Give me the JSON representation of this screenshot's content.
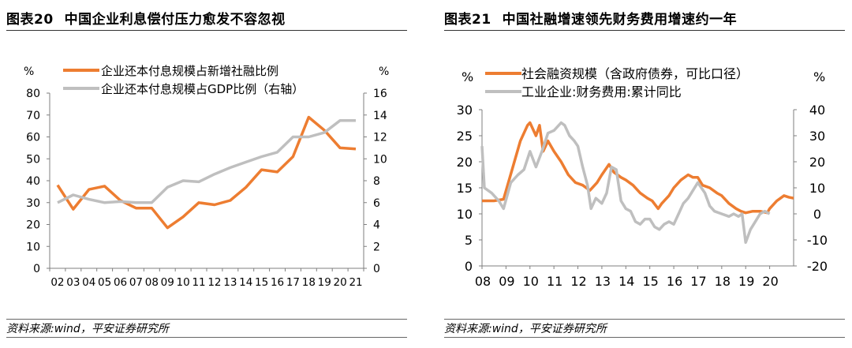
{
  "left": {
    "fig_num": "图表20",
    "title": "中国企业利息偿付压力愈发不容忽视",
    "source": "资料来源:wind，平安证券研究所"
  },
  "right": {
    "fig_num": "图表21",
    "title": "中国社融增速领先财务费用增速约一年",
    "source": "资料来源:wind，平安证券研究所"
  },
  "colors": {
    "orange": "#ED7D31",
    "gray": "#BFBFBF"
  },
  "chart_data": [
    {
      "type": "line",
      "title": "中国企业利息偿付压力愈发不容忽视",
      "x": [
        "02",
        "03",
        "04",
        "05",
        "06",
        "07",
        "08",
        "09",
        "10",
        "11",
        "12",
        "13",
        "14",
        "15",
        "16",
        "17",
        "18",
        "19",
        "20",
        "21"
      ],
      "y_unit_left": "%",
      "y_unit_right": "%",
      "ylim_left": [
        0,
        80
      ],
      "yticks_left": [
        "0",
        "10",
        "20",
        "30",
        "40",
        "50",
        "60",
        "70",
        "80"
      ],
      "ylim_right": [
        0,
        16
      ],
      "yticks_right": [
        "0",
        "2",
        "4",
        "6",
        "8",
        "10",
        "12",
        "14",
        "16"
      ],
      "legend_position": "top-left",
      "series": [
        {
          "name": "企业还本付息规模占新增社融比例",
          "axis": "left",
          "color": "#ED7D31",
          "values": [
            38,
            27,
            36,
            37.5,
            31,
            27.5,
            27.5,
            18.5,
            23.5,
            30,
            29,
            31,
            37,
            45,
            44,
            51,
            69,
            63,
            55,
            54.5
          ]
        },
        {
          "name": "企业还本付息规模占GDP比例（右轴）",
          "axis": "right",
          "color": "#BFBFBF",
          "values": [
            6.0,
            6.7,
            6.3,
            6.0,
            6.1,
            6.0,
            6.0,
            7.4,
            8.0,
            7.9,
            8.6,
            9.2,
            9.7,
            10.2,
            10.6,
            12.0,
            12.0,
            12.4,
            13.5,
            13.5
          ]
        }
      ]
    },
    {
      "type": "line",
      "title": "中国社融增速领先财务费用增速约一年",
      "x_ticks": [
        "08",
        "09",
        "10",
        "11",
        "12",
        "13",
        "14",
        "15",
        "16",
        "17",
        "18",
        "19",
        "20"
      ],
      "x_range": [
        2008.0,
        2021.0
      ],
      "y_unit_left": "%",
      "y_unit_right": "%",
      "ylim_left": [
        0,
        30
      ],
      "yticks_left": [
        "0",
        "5",
        "10",
        "15",
        "20",
        "25",
        "30"
      ],
      "ylim_right": [
        -20,
        40
      ],
      "yticks_right": [
        "-20",
        "-10",
        "0",
        "10",
        "20",
        "30",
        "40"
      ],
      "legend_position": "top-left",
      "series": [
        {
          "name": "社会融资规模（含政府债券，可比口径）",
          "axis": "left",
          "color": "#ED7D31",
          "x": [
            2008.0,
            2008.5,
            2008.9,
            2009.1,
            2009.35,
            2009.6,
            2009.9,
            2010.0,
            2010.25,
            2010.4,
            2010.55,
            2010.75,
            2011.0,
            2011.3,
            2011.6,
            2011.9,
            2012.2,
            2012.5,
            2012.8,
            2013.0,
            2013.3,
            2013.5,
            2013.8,
            2014.0,
            2014.3,
            2014.6,
            2014.9,
            2015.1,
            2015.35,
            2015.5,
            2015.8,
            2016.0,
            2016.3,
            2016.6,
            2016.8,
            2017.0,
            2017.2,
            2017.5,
            2017.8,
            2018.0,
            2018.3,
            2018.6,
            2018.8,
            2019.0,
            2019.3,
            2019.6,
            2019.9,
            2020.0,
            2020.3,
            2020.6,
            2020.8,
            2021.0
          ],
          "values": [
            12.5,
            12.5,
            12.8,
            16,
            20,
            24,
            27,
            27.5,
            25,
            27,
            22,
            24,
            22,
            20,
            17.5,
            16,
            15.5,
            14.5,
            16,
            17.5,
            19.5,
            18,
            17,
            16.5,
            15.5,
            14,
            13,
            12.5,
            11,
            12,
            13.5,
            15,
            16.5,
            17.5,
            17,
            17,
            15.5,
            15,
            14,
            13.5,
            12,
            11,
            10.5,
            10.2,
            10.5,
            10.5,
            10.2,
            11,
            12.5,
            13.5,
            13.2,
            13
          ]
        },
        {
          "name": "工业企业:财务费用:累计同比",
          "axis": "right",
          "color": "#BFBFBF",
          "x": [
            2008.0,
            2008.1,
            2008.4,
            2008.7,
            2008.9,
            2009.2,
            2009.5,
            2009.75,
            2010.0,
            2010.25,
            2010.5,
            2010.75,
            2011.0,
            2011.3,
            2011.45,
            2011.65,
            2011.85,
            2012.0,
            2012.2,
            2012.4,
            2012.55,
            2012.75,
            2013.0,
            2013.2,
            2013.4,
            2013.6,
            2013.8,
            2014.0,
            2014.2,
            2014.4,
            2014.6,
            2014.8,
            2015.0,
            2015.2,
            2015.4,
            2015.6,
            2015.8,
            2016.0,
            2016.2,
            2016.4,
            2016.6,
            2016.8,
            2017.0,
            2017.3,
            2017.5,
            2017.7,
            2018.0,
            2018.3,
            2018.5,
            2018.7,
            2018.85,
            2019.0,
            2019.2,
            2019.4,
            2019.6,
            2019.8,
            2020.0
          ],
          "values": [
            26,
            10,
            8,
            5,
            2,
            12,
            15,
            17,
            24,
            18,
            24,
            31,
            32,
            35,
            34,
            30,
            28,
            26,
            18,
            11,
            2,
            6,
            4,
            8,
            18,
            17,
            5,
            2,
            1,
            -3,
            -4,
            -2,
            -2,
            -5,
            -6,
            -4,
            -3,
            -4,
            0,
            4,
            6,
            9,
            12,
            8,
            3,
            1,
            0,
            -1,
            0,
            -1,
            0,
            -11,
            -6,
            -3,
            0,
            1,
            0
          ]
        }
      ]
    }
  ]
}
